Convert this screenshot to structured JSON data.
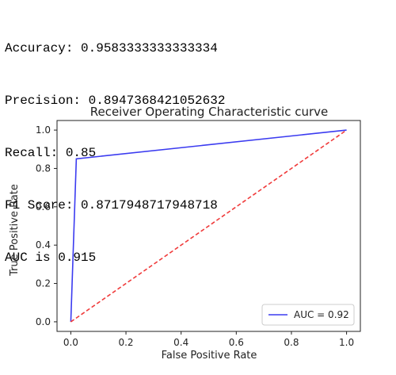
{
  "output": {
    "lines": [
      "Accuracy: 0.9583333333333334",
      "Precision: 0.8947368421052632",
      "Recall: 0.85",
      "F1 Score: 0.8717948717948718",
      "AUC is 0.915"
    ]
  },
  "chart_data": {
    "type": "line",
    "title": "Receiver Operating Characteristic curve",
    "xlabel": "False Positive Rate",
    "ylabel": "True Positive Rate",
    "xlim": [
      -0.05,
      1.05
    ],
    "ylim": [
      -0.05,
      1.05
    ],
    "xticks": [
      "0.0",
      "0.2",
      "0.4",
      "0.6",
      "0.8",
      "1.0"
    ],
    "yticks": [
      "0.0",
      "0.2",
      "0.4",
      "0.6",
      "0.8",
      "1.0"
    ],
    "grid": false,
    "legend_position": "lower right",
    "series": [
      {
        "name": "AUC = 0.92",
        "color": "#3b3bf0",
        "style": "solid",
        "x": [
          0.0,
          0.02,
          1.0
        ],
        "y": [
          0.0,
          0.85,
          1.0
        ]
      },
      {
        "color": "#f03b3b",
        "style": "dashed",
        "x": [
          0.0,
          1.0
        ],
        "y": [
          0.0,
          1.0
        ]
      }
    ]
  }
}
